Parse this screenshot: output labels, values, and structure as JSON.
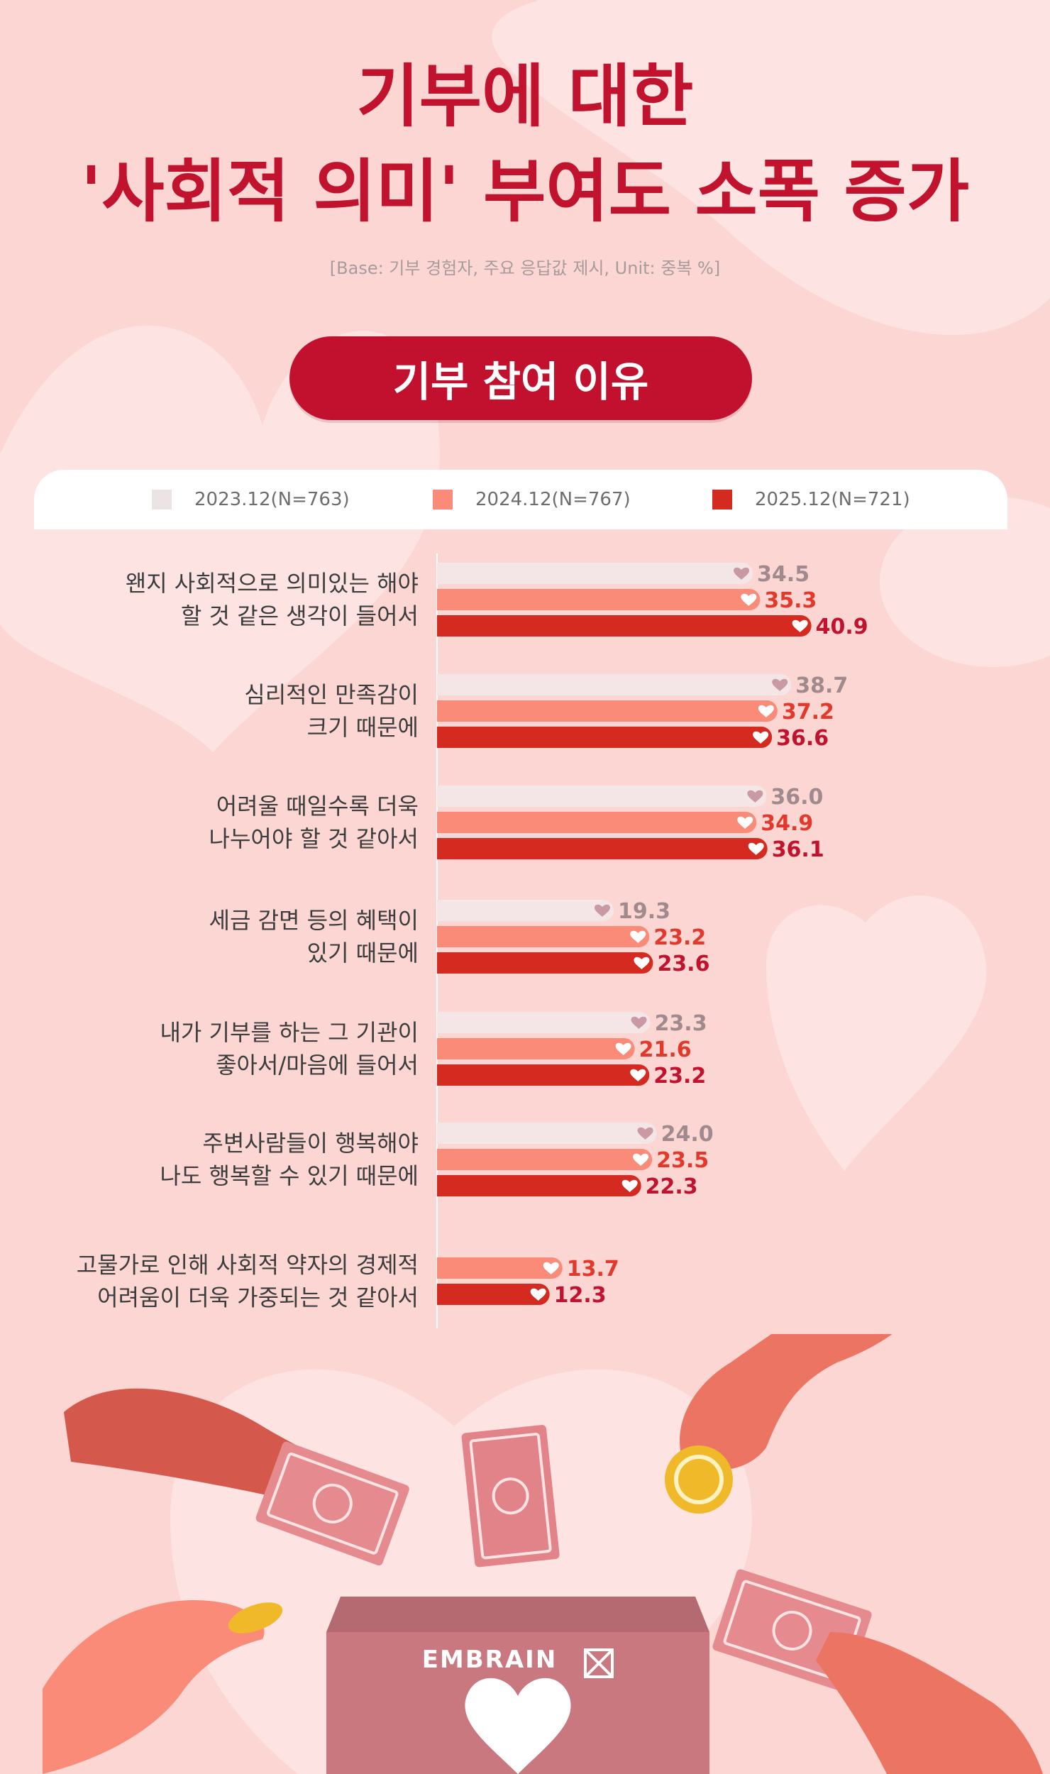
{
  "header": {
    "title_line_1": "기부에 대한",
    "title_line_2": "'사회적 의미' 부여도 소폭 증가",
    "subtitle": "[Base: 기부 경험자, 주요 응답값 제시, Unit: 중복 %]",
    "section_label": "기부 참여 이유"
  },
  "brand": {
    "logo_text": "EMBRAIN"
  },
  "colors": {
    "background": "#fbd6d3",
    "title": "#c1122e",
    "series_2023": "#f4e6e7",
    "series_2024": "#fa8b78",
    "series_2025": "#d52a20",
    "value_2023": "#a08a8d",
    "value_2024": "#e2392c",
    "value_2025": "#c1122e"
  },
  "chart_data": {
    "type": "bar",
    "orientation": "horizontal",
    "xlim": [
      0,
      45
    ],
    "legend_position": "top",
    "grid": false,
    "categories": [
      [
        "왠지 사회적으로 의미있는 해야",
        "할 것 같은 생각이 들어서"
      ],
      [
        "심리적인 만족감이",
        "크기 때문에"
      ],
      [
        "어려울 때일수록 더욱",
        "나누어야 할 것 같아서"
      ],
      [
        "세금 감면 등의 혜택이",
        "있기 때문에"
      ],
      [
        "내가 기부를 하는 그 기관이",
        "좋아서/마음에 들어서"
      ],
      [
        "주변사람들이 행복해야",
        "나도 행복할 수 있기 때문에"
      ],
      [
        "고물가로 인해 사회적 약자의 경제적",
        "어려움이 더욱 가중되는 것 같아서"
      ]
    ],
    "series": [
      {
        "name": "2023.12(N=763)",
        "values": [
          34.5,
          38.7,
          36.0,
          19.3,
          23.3,
          24.0,
          null
        ],
        "labels": [
          "34.5",
          "38.7",
          "36.0",
          "19.3",
          "23.3",
          "24.0",
          null
        ]
      },
      {
        "name": "2024.12(N=767)",
        "values": [
          35.3,
          37.2,
          34.9,
          23.2,
          21.6,
          23.5,
          13.7
        ],
        "labels": [
          "35.3",
          "37.2",
          "34.9",
          "23.2",
          "21.6",
          "23.5",
          "13.7"
        ]
      },
      {
        "name": "2025.12(N=721)",
        "values": [
          40.9,
          36.6,
          36.1,
          23.6,
          23.2,
          22.3,
          12.3
        ],
        "labels": [
          "40.9",
          "36.6",
          "36.1",
          "23.6",
          "23.2",
          "22.3",
          "12.3"
        ]
      }
    ]
  }
}
